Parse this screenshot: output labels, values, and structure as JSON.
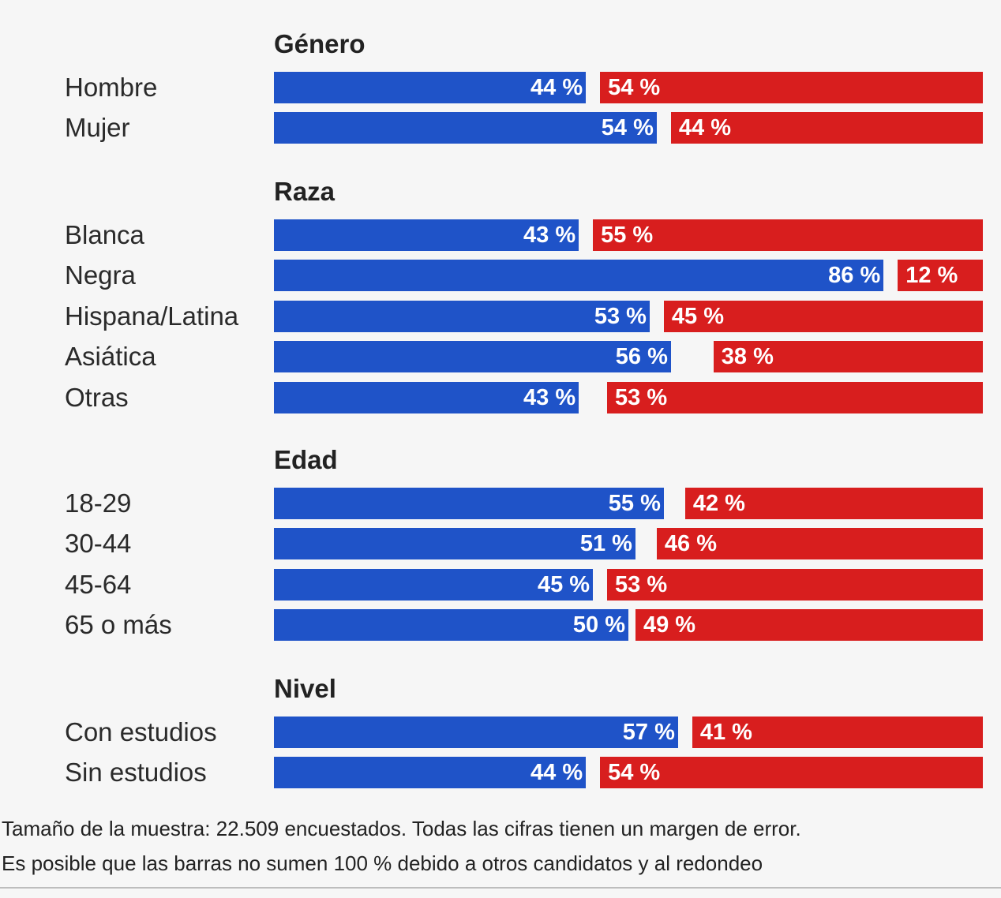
{
  "chart_data": {
    "type": "bar",
    "orientation": "horizontal-diverging",
    "colors": {
      "left": "#1f53c8",
      "right": "#d81e1e"
    },
    "value_suffix": " %",
    "groups": [
      {
        "title": "Género",
        "rows": [
          {
            "label": "Hombre",
            "left": 44,
            "right": 54
          },
          {
            "label": "Mujer",
            "left": 54,
            "right": 44
          }
        ]
      },
      {
        "title": "Raza",
        "rows": [
          {
            "label": "Blanca",
            "left": 43,
            "right": 55
          },
          {
            "label": "Negra",
            "left": 86,
            "right": 12
          },
          {
            "label": "Hispana/Latina",
            "left": 53,
            "right": 45
          },
          {
            "label": "Asiática",
            "left": 56,
            "right": 38
          },
          {
            "label": "Otras",
            "left": 43,
            "right": 53
          }
        ]
      },
      {
        "title": "Edad",
        "rows": [
          {
            "label": "18-29",
            "left": 55,
            "right": 42
          },
          {
            "label": "30-44",
            "left": 51,
            "right": 46
          },
          {
            "label": "45-64",
            "left": 45,
            "right": 53
          },
          {
            "label": "65 o más",
            "left": 50,
            "right": 49
          }
        ]
      },
      {
        "title": "Nivel",
        "rows": [
          {
            "label": "Con estudios",
            "left": 57,
            "right": 41
          },
          {
            "label": "Sin estudios",
            "left": 44,
            "right": 54
          }
        ]
      }
    ]
  },
  "footnotes": {
    "line1": "Tamaño de la muestra: 22.509 encuestados. Todas las cifras tienen un margen de error.",
    "line2": "Es posible que las barras no sumen 100 % debido a otros candidatos y al redondeo"
  }
}
